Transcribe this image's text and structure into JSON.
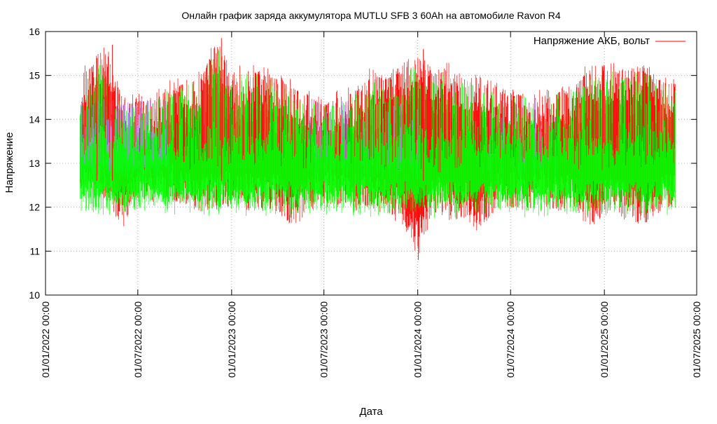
{
  "chart_data": {
    "type": "line",
    "title": "Онлайн график заряда аккумулятора MUTLU SFB 3 60Ah на автомобиле Ravon R4",
    "xlabel": "Дата",
    "ylabel": "Напряжение",
    "ylim": [
      10,
      16
    ],
    "yticks": [
      "10",
      "11",
      "12",
      "13",
      "14",
      "15",
      "16"
    ],
    "xticks": [
      "01/01/2022 00:00",
      "01/07/2022 00:00",
      "01/01/2023 00:00",
      "01/07/2023 00:00",
      "01/01/2024 00:00",
      "01/07/2024 00:00",
      "01/01/2025 00:00",
      "01/07/2025 00:00"
    ],
    "grid": true,
    "legend_position": "top-right",
    "legend": [
      {
        "name": "Напряжение АКБ, вольт",
        "color": "#ff0000"
      }
    ],
    "series": [
      {
        "name": "Напряжение АКБ, вольт",
        "color": "#ff0000",
        "x_start": "2022-03",
        "x_end": "2025-05",
        "monthly": {
          "months": [
            "2022-03",
            "2022-04",
            "2022-05",
            "2022-06",
            "2022-07",
            "2022-08",
            "2022-09",
            "2022-10",
            "2022-11",
            "2022-12",
            "2023-01",
            "2023-02",
            "2023-03",
            "2023-04",
            "2023-05",
            "2023-06",
            "2023-07",
            "2023-08",
            "2023-09",
            "2023-10",
            "2023-11",
            "2023-12",
            "2024-01",
            "2024-02",
            "2024-03",
            "2024-04",
            "2024-05",
            "2024-06",
            "2024-07",
            "2024-08",
            "2024-09",
            "2024-10",
            "2024-11",
            "2024-12",
            "2025-01",
            "2025-02",
            "2025-03",
            "2025-04",
            "2025-05"
          ],
          "min": [
            12.3,
            12.2,
            12.1,
            11.5,
            12.2,
            12.1,
            12.2,
            12.0,
            11.9,
            11.9,
            12.0,
            11.9,
            11.9,
            11.9,
            11.5,
            11.9,
            12.0,
            12.0,
            11.9,
            11.9,
            11.8,
            11.6,
            10.8,
            11.9,
            11.7,
            11.7,
            11.4,
            11.9,
            12.0,
            11.9,
            12.0,
            11.9,
            11.9,
            11.5,
            11.8,
            11.7,
            11.6,
            11.6,
            11.9
          ],
          "max": [
            15.0,
            15.4,
            15.7,
            14.5,
            14.6,
            14.6,
            14.9,
            15.0,
            15.1,
            15.9,
            15.2,
            15.3,
            15.2,
            15.1,
            14.9,
            14.7,
            14.5,
            14.7,
            14.8,
            15.2,
            15.1,
            15.3,
            15.6,
            15.2,
            15.3,
            15.1,
            15.0,
            14.9,
            14.7,
            14.8,
            14.7,
            14.8,
            14.9,
            15.3,
            15.3,
            15.3,
            15.3,
            15.2,
            15.0
          ]
        }
      }
    ]
  }
}
